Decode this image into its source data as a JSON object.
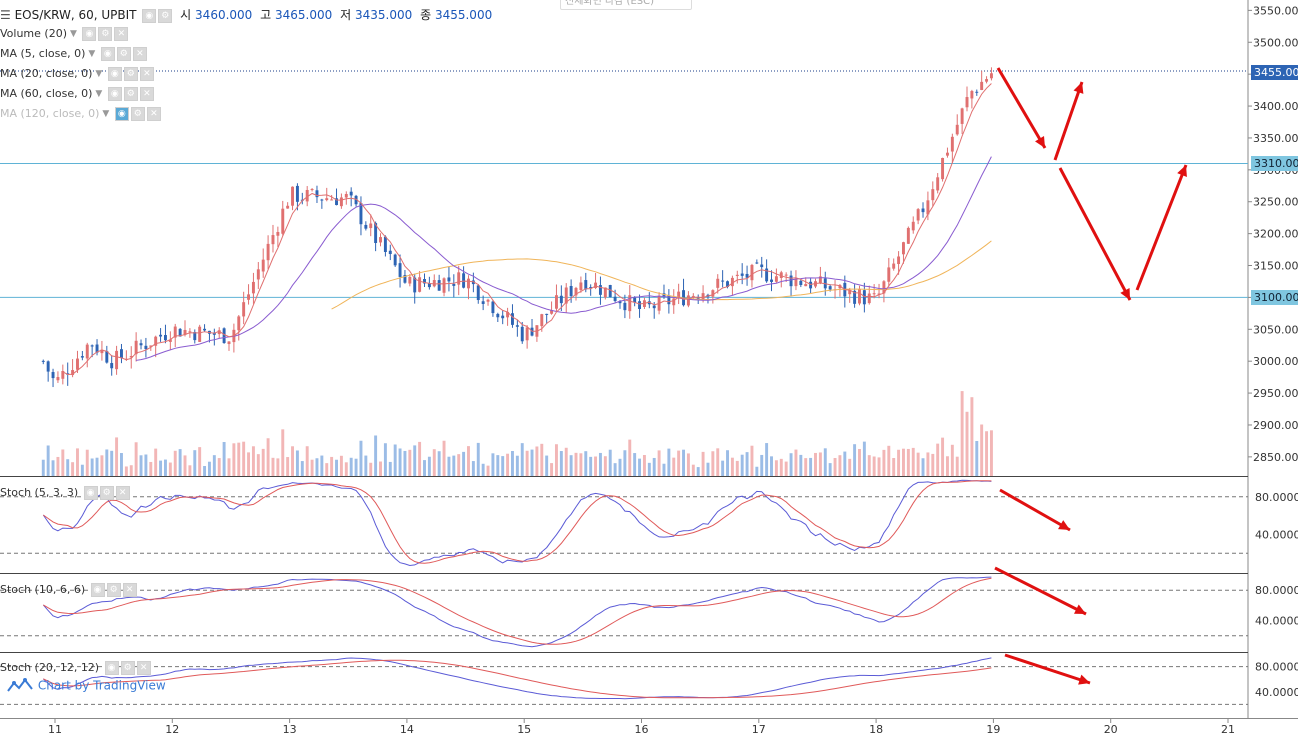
{
  "header": {
    "symbol": "EOS/KRW, 60, UPBIT",
    "open_label": "시",
    "open": "3460.000",
    "high_label": "고",
    "high": "3465.000",
    "low_label": "저",
    "low": "3435.000",
    "close_label": "종",
    "close": "3455.000",
    "top_box": "전체화면 나감 (ESC)"
  },
  "indicators": [
    {
      "label": "Volume (20)"
    },
    {
      "label": "MA (5, close, 0)"
    },
    {
      "label": "MA (20, close, 0)"
    },
    {
      "label": "MA (60, close, 0)"
    },
    {
      "label": "MA (120, close, 0)"
    }
  ],
  "price_tags": {
    "last": "3455.000",
    "level1": "3310.000",
    "level2": "3100.000"
  },
  "colors": {
    "up": "#e07070",
    "down": "#2d64b4",
    "up_vol": "#f2b6b6",
    "down_vol": "#9bbce6",
    "ma5": "#e07070",
    "ma20": "#8a5cd0",
    "ma60": "#f0b55a",
    "stoch_k": "#5b5bd6",
    "stoch_d": "#e05a5a",
    "level_line": "#5fb3d6",
    "arrow": "#e01010"
  },
  "watermark": "Chart by TradingView",
  "chart_data": [
    {
      "type": "candlestick",
      "title": "EOS/KRW, 60, UPBIT",
      "x_tick_labels": [
        "11",
        "12",
        "13",
        "14",
        "15",
        "16",
        "17",
        "18",
        "19",
        "20",
        "21"
      ],
      "y_tick_labels": [
        "3550.000",
        "3500.000",
        "3450.000",
        "3400.000",
        "3350.000",
        "3300.000",
        "3250.000",
        "3200.000",
        "3150.000",
        "3100.000",
        "3050.000",
        "3000.000",
        "2950.000",
        "2900.000",
        "2850.000"
      ],
      "ylim": [
        2820,
        3560
      ],
      "horizontal_levels": [
        3310,
        3100
      ],
      "last_price": 3455,
      "approx_close_path": [
        {
          "x": "10.9",
          "close": 3000
        },
        {
          "x": "11",
          "close": 2965
        },
        {
          "x": "11.3",
          "close": 3030
        },
        {
          "x": "11.5",
          "close": 3000
        },
        {
          "x": "12",
          "close": 3050
        },
        {
          "x": "12.5",
          "close": 3040
        },
        {
          "x": "13",
          "close": 3260
        },
        {
          "x": "13.5",
          "close": 3255
        },
        {
          "x": "14",
          "close": 3120
        },
        {
          "x": "14.5",
          "close": 3130
        },
        {
          "x": "15",
          "close": 3040
        },
        {
          "x": "15.5",
          "close": 3130
        },
        {
          "x": "16",
          "close": 3080
        },
        {
          "x": "16.5",
          "close": 3110
        },
        {
          "x": "17",
          "close": 3140
        },
        {
          "x": "17.5",
          "close": 3120
        },
        {
          "x": "18",
          "close": 3095
        },
        {
          "x": "18.4",
          "close": 3240
        },
        {
          "x": "18.8",
          "close": 3420
        },
        {
          "x": "19",
          "close": 3455
        }
      ]
    },
    {
      "type": "line",
      "title": "Stoch (5, 3, 3)",
      "y_tick_labels": [
        "80.0000",
        "40.0000"
      ],
      "ylim": [
        0,
        100
      ],
      "bands": [
        80,
        20
      ]
    },
    {
      "type": "line",
      "title": "Stoch (10, 6, 6)",
      "y_tick_labels": [
        "80.0000",
        "40.0000"
      ],
      "ylim": [
        0,
        100
      ],
      "bands": [
        80,
        20
      ]
    },
    {
      "type": "line",
      "title": "Stoch (20, 12, 12)",
      "y_tick_labels": [
        "80.0000",
        "40.0000"
      ],
      "ylim": [
        0,
        100
      ],
      "bands": [
        80,
        20
      ]
    }
  ]
}
